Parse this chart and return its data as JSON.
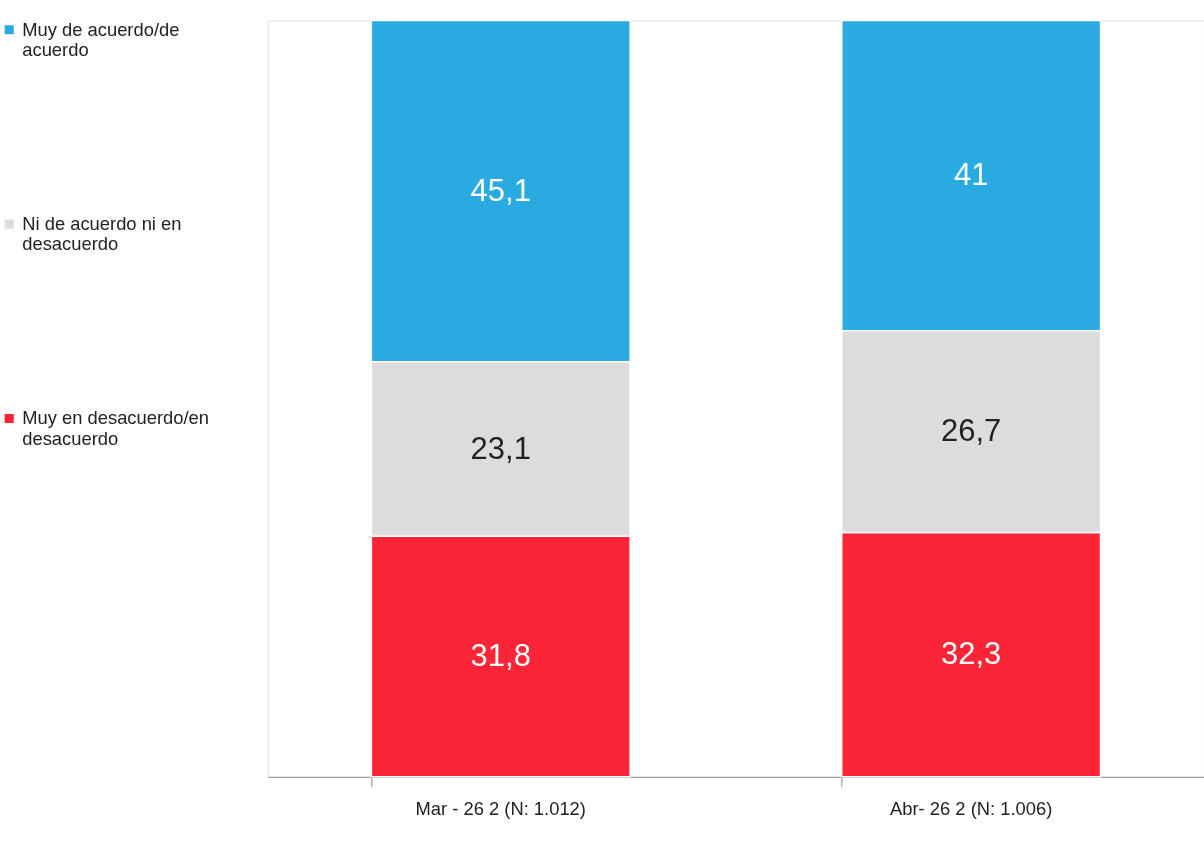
{
  "chart_data": {
    "type": "bar",
    "stacked": true,
    "legend": "left",
    "categories": [
      "Mar - 26 2 (N: 1.012)",
      "Abr- 26 2 (N: 1.006)"
    ],
    "series": [
      {
        "name": "Muy en desacuerdo/en desacuerdo",
        "color": "#fc2537",
        "values": [
          31.8,
          32.3
        ],
        "value_labels": [
          "31,8",
          "32,3"
        ]
      },
      {
        "name": "Ni de acuerdo ni en desacuerdo",
        "color": "#dcdcdc",
        "values": [
          23.1,
          26.7
        ],
        "value_labels": [
          "23,1",
          "26,7"
        ]
      },
      {
        "name": "Muy de acuerdo/de acuerdo",
        "color": "#29abe2",
        "values": [
          45.1,
          41
        ],
        "value_labels": [
          "45,1",
          "41"
        ]
      }
    ]
  }
}
